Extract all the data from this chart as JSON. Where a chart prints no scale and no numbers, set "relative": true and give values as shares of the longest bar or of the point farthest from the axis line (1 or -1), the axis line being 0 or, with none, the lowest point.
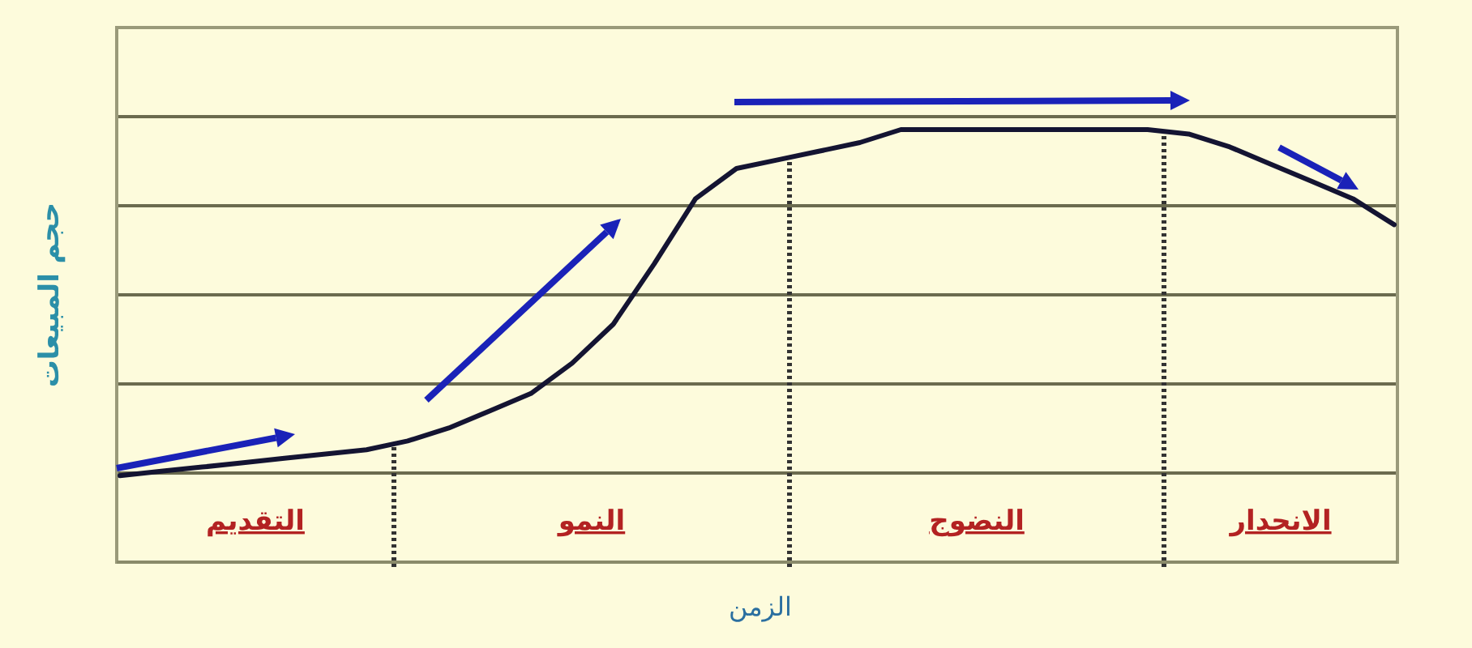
{
  "chart_data": {
    "type": "line",
    "relative": true,
    "xlabel": "الزمن",
    "ylabel": "حجم المبيعات",
    "grid": "y",
    "categories": [
      null,
      null,
      null,
      null,
      null,
      null,
      null,
      null,
      null,
      null,
      null,
      null,
      null,
      null,
      null,
      null,
      null,
      null,
      null,
      null,
      null,
      null,
      null,
      null,
      null,
      null,
      null,
      null,
      null,
      null,
      null,
      null
    ],
    "series": [
      {
        "color": "#141432",
        "values": [
          0.2,
          0.21,
          0.22,
          0.23,
          0.24,
          0.25,
          0.26,
          0.28,
          0.31,
          0.35,
          0.39,
          0.46,
          0.55,
          0.69,
          0.84,
          0.91,
          0.93,
          0.95,
          0.97,
          1.0,
          1.0,
          1.0,
          1.0,
          1.0,
          1.0,
          1.0,
          0.99,
          0.96,
          0.92,
          0.88,
          0.84,
          0.78
        ]
      }
    ],
    "annotations": [
      "التقديم",
      "النمو",
      "النضوج",
      "الانحدار"
    ]
  }
}
